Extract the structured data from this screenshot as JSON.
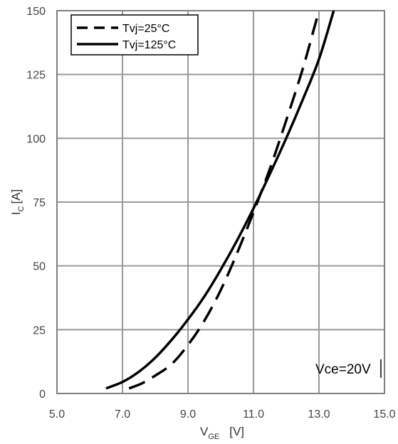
{
  "chart_data": {
    "type": "line",
    "xlabel_main": "V",
    "xlabel_sub": "GE",
    "xlabel_unit": "[V]",
    "ylabel_main": "I",
    "ylabel_sub": "C",
    "ylabel_unit": "[A]",
    "xlim": [
      5.0,
      15.0
    ],
    "ylim": [
      0,
      150
    ],
    "xticks": [
      "5.0",
      "7.0",
      "9.0",
      "11.0",
      "13.0",
      "15.0"
    ],
    "yticks": [
      "0",
      "25",
      "50",
      "75",
      "100",
      "125",
      "150"
    ],
    "grid": true,
    "legend_position": "top-left",
    "annotation": "Vce=20V",
    "series": [
      {
        "name": "Tvj=25°C",
        "style": "dashed",
        "color": "#000000",
        "x": [
          7.2,
          7.6,
          8.0,
          8.5,
          9.0,
          9.5,
          10.0,
          10.5,
          11.0,
          11.5,
          12.0,
          12.5,
          12.85,
          13.0
        ],
        "y": [
          2,
          4,
          7,
          11.5,
          19,
          28.5,
          40.5,
          55,
          71,
          88,
          107,
          127,
          143,
          150
        ]
      },
      {
        "name": "Tvj=125°C",
        "style": "solid",
        "color": "#000000",
        "x": [
          6.5,
          7.0,
          7.5,
          8.0,
          8.5,
          9.0,
          9.5,
          10.0,
          10.5,
          11.0,
          11.5,
          12.0,
          12.5,
          13.0,
          13.45
        ],
        "y": [
          2,
          4.5,
          8.5,
          14,
          21,
          29,
          38,
          48.5,
          60,
          72.5,
          86,
          100,
          115,
          131,
          150
        ]
      }
    ]
  }
}
